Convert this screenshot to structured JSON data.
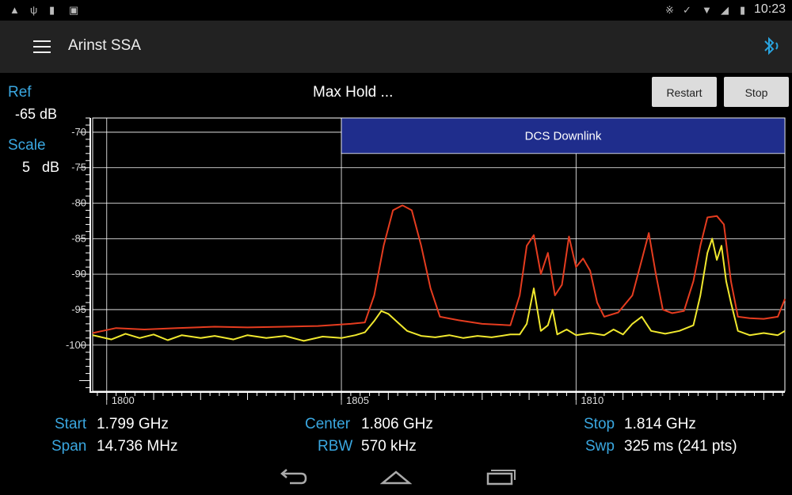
{
  "status_bar": {
    "time": "10:23",
    "left_icons": [
      "warning-icon",
      "usb-icon",
      "sd-card-icon",
      "photo-icon"
    ],
    "right_icons": [
      "bluetooth-icon",
      "mute-icon",
      "wifi-icon",
      "signal-icon",
      "battery-icon"
    ]
  },
  "app_bar": {
    "title": "Arinst SSA",
    "menu_icon": "menu-icon",
    "bluetooth_icon": "bluetooth-icon",
    "accent": "#29a3de"
  },
  "sidebar": {
    "ref_label": "Ref",
    "ref_value": "-65 dB",
    "scale_label": "Scale",
    "scale_value": "5   dB"
  },
  "toolbar": {
    "mode": "Max Hold ...",
    "restart_label": "Restart",
    "stop_label": "Stop"
  },
  "info": {
    "start_label": "Start",
    "start_value": "1.799 GHz",
    "span_label": "Span",
    "span_value": "14.736 MHz",
    "center_label": "Center",
    "center_value": "1.806 GHz",
    "rbw_label": "RBW",
    "rbw_value": "570 kHz",
    "stop_label": "Stop",
    "stop_value": "1.814 GHz",
    "swp_label": "Swp",
    "swp_value": "325 ms (241 pts)"
  },
  "colors": {
    "label_blue": "#3aa7e0",
    "band_fill": "#1f2d8c",
    "max_hold": "#e53c1f",
    "live": "#f0e82e",
    "grid": "#ffffff"
  },
  "chart_data": {
    "type": "line",
    "xlim": [
      1799.7,
      1814.45
    ],
    "ylim": [
      -106.5,
      -68
    ],
    "x_ticks": [
      1800,
      1805,
      1810
    ],
    "x_tick_labels": [
      "1800",
      "1805",
      "1810"
    ],
    "y_ticks": [
      -70,
      -75,
      -80,
      -85,
      -90,
      -95,
      -100
    ],
    "y_tick_labels": [
      "-70",
      "-75",
      "-80",
      "-85",
      "-90",
      "-95",
      "-100"
    ],
    "band": {
      "label": "DCS Downlink",
      "x_start": 1805,
      "y_top": -68,
      "y_bottom": -73
    },
    "series": [
      {
        "role": "max-hold",
        "color": "#e53c1f",
        "points": [
          [
            1799.7,
            -98.3
          ],
          [
            1800.2,
            -97.6
          ],
          [
            1800.8,
            -97.8
          ],
          [
            1801.5,
            -97.6
          ],
          [
            1802.3,
            -97.4
          ],
          [
            1803.0,
            -97.5
          ],
          [
            1803.8,
            -97.4
          ],
          [
            1804.5,
            -97.3
          ],
          [
            1805.2,
            -97.0
          ],
          [
            1805.5,
            -96.8
          ],
          [
            1805.7,
            -93.0
          ],
          [
            1805.9,
            -86.0
          ],
          [
            1806.1,
            -81.0
          ],
          [
            1806.3,
            -80.3
          ],
          [
            1806.5,
            -81.0
          ],
          [
            1806.7,
            -86.0
          ],
          [
            1806.9,
            -92.0
          ],
          [
            1807.1,
            -96.0
          ],
          [
            1807.5,
            -96.5
          ],
          [
            1808.0,
            -97.0
          ],
          [
            1808.6,
            -97.2
          ],
          [
            1808.8,
            -93.0
          ],
          [
            1808.95,
            -86.0
          ],
          [
            1809.1,
            -84.5
          ],
          [
            1809.25,
            -90.0
          ],
          [
            1809.4,
            -87.0
          ],
          [
            1809.55,
            -93.0
          ],
          [
            1809.7,
            -91.5
          ],
          [
            1809.85,
            -84.7
          ],
          [
            1810.0,
            -89.0
          ],
          [
            1810.15,
            -87.8
          ],
          [
            1810.3,
            -89.5
          ],
          [
            1810.45,
            -94.0
          ],
          [
            1810.6,
            -96.0
          ],
          [
            1810.9,
            -95.4
          ],
          [
            1811.2,
            -93.0
          ],
          [
            1811.4,
            -88.0
          ],
          [
            1811.55,
            -84.2
          ],
          [
            1811.7,
            -90.0
          ],
          [
            1811.85,
            -95.0
          ],
          [
            1812.05,
            -95.5
          ],
          [
            1812.3,
            -95.2
          ],
          [
            1812.5,
            -91.0
          ],
          [
            1812.65,
            -86.0
          ],
          [
            1812.8,
            -82.0
          ],
          [
            1813.0,
            -81.8
          ],
          [
            1813.15,
            -83.0
          ],
          [
            1813.3,
            -91.0
          ],
          [
            1813.45,
            -96.0
          ],
          [
            1813.7,
            -96.2
          ],
          [
            1814.0,
            -96.3
          ],
          [
            1814.3,
            -96.0
          ],
          [
            1814.45,
            -93.5
          ]
        ]
      },
      {
        "role": "live",
        "color": "#f0e82e",
        "points": [
          [
            1799.7,
            -98.6
          ],
          [
            1800.1,
            -99.2
          ],
          [
            1800.4,
            -98.4
          ],
          [
            1800.7,
            -99.0
          ],
          [
            1801.0,
            -98.5
          ],
          [
            1801.3,
            -99.3
          ],
          [
            1801.6,
            -98.6
          ],
          [
            1802.0,
            -99.0
          ],
          [
            1802.3,
            -98.7
          ],
          [
            1802.7,
            -99.2
          ],
          [
            1803.0,
            -98.6
          ],
          [
            1803.4,
            -99.0
          ],
          [
            1803.8,
            -98.7
          ],
          [
            1804.2,
            -99.4
          ],
          [
            1804.6,
            -98.8
          ],
          [
            1805.0,
            -99.0
          ],
          [
            1805.3,
            -98.6
          ],
          [
            1805.5,
            -98.2
          ],
          [
            1805.7,
            -96.6
          ],
          [
            1805.85,
            -95.2
          ],
          [
            1806.0,
            -95.6
          ],
          [
            1806.2,
            -96.8
          ],
          [
            1806.4,
            -98.0
          ],
          [
            1806.7,
            -98.7
          ],
          [
            1807.0,
            -98.9
          ],
          [
            1807.3,
            -98.6
          ],
          [
            1807.6,
            -99.0
          ],
          [
            1807.9,
            -98.7
          ],
          [
            1808.2,
            -98.9
          ],
          [
            1808.6,
            -98.5
          ],
          [
            1808.8,
            -98.5
          ],
          [
            1808.95,
            -97.0
          ],
          [
            1809.1,
            -92.0
          ],
          [
            1809.25,
            -98.0
          ],
          [
            1809.4,
            -97.2
          ],
          [
            1809.5,
            -95.0
          ],
          [
            1809.6,
            -98.5
          ],
          [
            1809.8,
            -97.8
          ],
          [
            1810.0,
            -98.6
          ],
          [
            1810.3,
            -98.3
          ],
          [
            1810.6,
            -98.6
          ],
          [
            1810.8,
            -97.8
          ],
          [
            1811.0,
            -98.5
          ],
          [
            1811.2,
            -97.0
          ],
          [
            1811.4,
            -96.0
          ],
          [
            1811.6,
            -98.0
          ],
          [
            1811.9,
            -98.4
          ],
          [
            1812.2,
            -98.0
          ],
          [
            1812.5,
            -97.2
          ],
          [
            1812.65,
            -93.0
          ],
          [
            1812.8,
            -87.0
          ],
          [
            1812.9,
            -85.0
          ],
          [
            1813.0,
            -88.0
          ],
          [
            1813.1,
            -86.0
          ],
          [
            1813.2,
            -91.0
          ],
          [
            1813.3,
            -94.0
          ],
          [
            1813.45,
            -98.0
          ],
          [
            1813.7,
            -98.6
          ],
          [
            1814.0,
            -98.3
          ],
          [
            1814.3,
            -98.6
          ],
          [
            1814.45,
            -98.0
          ]
        ]
      }
    ]
  }
}
